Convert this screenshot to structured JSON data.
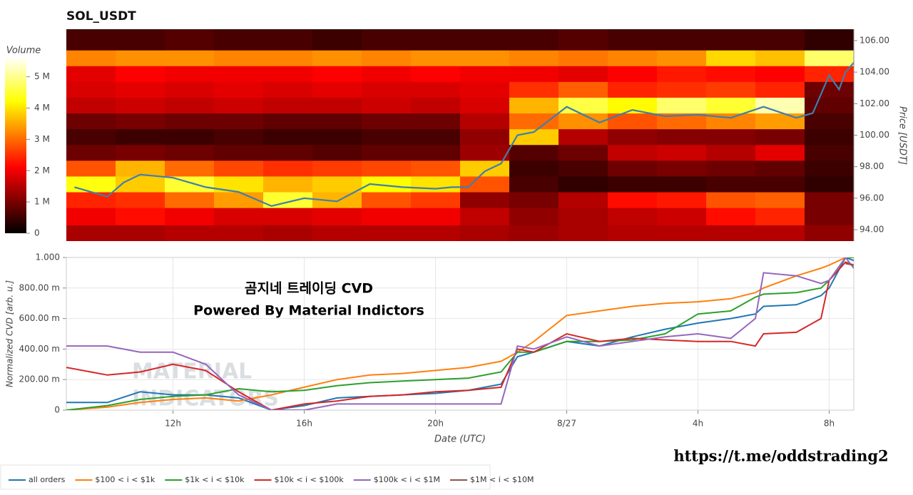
{
  "chart_data": [
    {
      "type": "heatmap",
      "title": "SOL_USDT",
      "colormap": "hot",
      "colorbar_label": "Volume",
      "ylabel": "Price [USDT]",
      "y_axis_position": "right",
      "xlim": [
        8.75,
        32.75
      ],
      "ylim": [
        93.28,
        106.72
      ],
      "yticks": [
        {
          "value": 94,
          "label": "94.00"
        },
        {
          "value": 96,
          "label": "96.00"
        },
        {
          "value": 98,
          "label": "98.00"
        },
        {
          "value": 100,
          "label": "100.00"
        },
        {
          "value": 102,
          "label": "102.00"
        },
        {
          "value": 104,
          "label": "104.00"
        },
        {
          "value": 106,
          "label": "106.00"
        }
      ],
      "zlim": [
        0,
        5630000.0
      ],
      "zticks": [
        0,
        {
          "value": 1000000.0,
          "label": "1 M"
        },
        {
          "value": 2000000.0,
          "label": "2 M"
        },
        {
          "value": 3000000.0,
          "label": "3 M"
        },
        {
          "value": 4000000.0,
          "label": "4 M"
        },
        {
          "value": 5000000.0,
          "label": "5 M"
        }
      ],
      "x_bins": [
        8.75,
        10.25,
        11.75,
        13.25,
        14.75,
        16.25,
        17.75,
        19.25,
        20.75,
        22.25,
        23.75,
        25.25,
        26.75,
        28.25,
        29.75,
        31.25,
        32.75
      ],
      "y_bins": [
        93.3,
        94.3,
        95.4,
        96.4,
        97.4,
        98.4,
        99.4,
        100.4,
        101.4,
        102.4,
        103.4,
        104.4,
        105.4,
        106.7
      ],
      "values": [
        [
          1400000.0,
          1400000.0,
          1500000.0,
          1500000.0,
          1400000.0,
          1500000.0,
          1500000.0,
          1500000.0,
          1400000.0,
          1300000.0,
          1400000.0,
          1500000.0,
          1500000.0,
          1500000.0,
          1500000.0,
          1200000.0
        ],
        [
          2000000.0,
          2200000.0,
          2000000.0,
          1800000.0,
          1800000.0,
          1900000.0,
          2000000.0,
          2000000.0,
          1600000.0,
          1200000.0,
          1400000.0,
          1600000.0,
          1700000.0,
          2200000.0,
          2400000.0,
          1000000.0
        ],
        [
          2400000.0,
          2500000.0,
          3000000.0,
          3400000.0,
          4500000.0,
          3600000.0,
          2800000.0,
          2600000.0,
          1200000.0,
          1000000.0,
          1500000.0,
          2200000.0,
          2300000.0,
          2800000.0,
          2900000.0,
          1000000.0
        ],
        [
          4300000.0,
          3800000.0,
          4500000.0,
          4000000.0,
          3600000.0,
          3800000.0,
          4200000.0,
          4000000.0,
          2800000.0,
          600000.0,
          400000.0,
          500000.0,
          500000.0,
          600000.0,
          600000.0,
          400000.0
        ],
        [
          2800000.0,
          3600000.0,
          3000000.0,
          2700000.0,
          2500000.0,
          2600000.0,
          2700000.0,
          2800000.0,
          3800000.0,
          500000.0,
          600000.0,
          900000.0,
          1000000.0,
          900000.0,
          800000.0,
          500000.0
        ],
        [
          900000.0,
          1000000.0,
          900000.0,
          800000.0,
          800000.0,
          700000.0,
          800000.0,
          800000.0,
          1300000.0,
          700000.0,
          900000.0,
          1600000.0,
          1700000.0,
          1500000.0,
          1900000.0,
          600000.0
        ],
        [
          600000.0,
          500000.0,
          500000.0,
          600000.0,
          500000.0,
          500000.0,
          600000.0,
          600000.0,
          1200000.0,
          3800000.0,
          1500000.0,
          1200000.0,
          1100000.0,
          1100000.0,
          1000000.0,
          500000.0
        ],
        [
          900000.0,
          1000000.0,
          900000.0,
          900000.0,
          800000.0,
          800000.0,
          900000.0,
          900000.0,
          1500000.0,
          3000000.0,
          3300000.0,
          2800000.0,
          3000000.0,
          3200000.0,
          3400000.0,
          600000.0
        ],
        [
          1600000.0,
          1700000.0,
          1600000.0,
          1700000.0,
          1600000.0,
          1600000.0,
          1700000.0,
          1600000.0,
          1800000.0,
          3600000.0,
          4600000.0,
          4200000.0,
          4800000.0,
          4500000.0,
          5200000.0,
          800000.0
        ],
        [
          1800000.0,
          1900000.0,
          1800000.0,
          1900000.0,
          1800000.0,
          1900000.0,
          1800000.0,
          1800000.0,
          1900000.0,
          2500000.0,
          2900000.0,
          2400000.0,
          2500000.0,
          2600000.0,
          2400000.0,
          900000.0
        ],
        [
          1900000.0,
          2100000.0,
          2000000.0,
          2000000.0,
          2000000.0,
          2100000.0,
          2000000.0,
          2100000.0,
          2000000.0,
          2000000.0,
          1900000.0,
          2100000.0,
          2300000.0,
          2200000.0,
          2100000.0,
          2400000.0
        ],
        [
          3200000.0,
          3300000.0,
          3300000.0,
          3200000.0,
          3200000.0,
          3300000.0,
          3200000.0,
          3300000.0,
          3300000.0,
          3200000.0,
          3100000.0,
          3200000.0,
          3300000.0,
          3900000.0,
          3700000.0,
          4800000.0
        ],
        [
          600000.0,
          600000.0,
          700000.0,
          600000.0,
          600000.0,
          500000.0,
          600000.0,
          600000.0,
          600000.0,
          600000.0,
          700000.0,
          600000.0,
          600000.0,
          600000.0,
          600000.0,
          400000.0
        ]
      ],
      "price": {
        "color": "#3f7fae",
        "x": [
          9,
          10,
          10.5,
          11,
          12,
          13,
          14,
          15,
          16,
          17,
          18,
          19,
          20,
          20.5,
          21,
          21.5,
          22,
          22.5,
          23,
          24,
          25,
          26,
          27,
          28,
          29,
          30,
          31,
          31.5,
          32,
          32.3,
          32.5,
          32.75
        ],
        "values": [
          96.7,
          96.1,
          97.0,
          97.5,
          97.3,
          96.7,
          96.4,
          95.5,
          96.0,
          95.8,
          96.9,
          96.7,
          96.6,
          96.7,
          96.7,
          97.7,
          98.2,
          100.0,
          100.2,
          101.8,
          100.8,
          101.6,
          101.2,
          101.3,
          101.1,
          101.8,
          101.1,
          101.4,
          103.8,
          102.9,
          104.0,
          104.6
        ]
      }
    },
    {
      "type": "line",
      "xlabel": "Date (UTC)",
      "ylabel": "Normalized CVD [arb. u.]",
      "grid": true,
      "legend": "bottom",
      "annotations": [
        "곰지네 트레이딩 CVD",
        "Powered By Material Indictors"
      ],
      "watermark": [
        "MATERIAL",
        "INDICATORS"
      ],
      "xlim": [
        8.75,
        32.75
      ],
      "xticks": [
        {
          "value": 12,
          "label": "12h"
        },
        {
          "value": 16,
          "label": "16h"
        },
        {
          "value": 20,
          "label": "20h"
        },
        {
          "value": 24,
          "label": "8/27"
        },
        {
          "value": 28,
          "label": "4h"
        },
        {
          "value": 32,
          "label": "8h"
        }
      ],
      "ylim": [
        0,
        1
      ],
      "yticks": [
        0,
        {
          "value": 0.2,
          "label": "200.00 m"
        },
        {
          "value": 0.4,
          "label": "400.00 m"
        },
        {
          "value": 0.6,
          "label": "600.00 m"
        },
        {
          "value": 0.8,
          "label": "800.00 m"
        },
        {
          "value": 1,
          "label": "1.000"
        }
      ],
      "x": [
        8.75,
        10,
        11,
        12,
        13,
        14,
        15,
        16,
        17,
        18,
        19,
        20,
        21,
        22,
        22.5,
        23,
        24,
        25,
        26,
        27,
        28,
        29,
        29.75,
        30,
        31,
        31.75,
        32,
        32.5,
        32.75
      ],
      "series": [
        {
          "name": "all orders",
          "color": "#1f77b4",
          "values": [
            0.05,
            0.05,
            0.12,
            0.1,
            0.1,
            0.08,
            0.0,
            0.03,
            0.08,
            0.09,
            0.1,
            0.11,
            0.13,
            0.17,
            0.35,
            0.38,
            0.45,
            0.42,
            0.48,
            0.53,
            0.57,
            0.6,
            0.63,
            0.68,
            0.69,
            0.75,
            0.8,
            1.0,
            0.98
          ]
        },
        {
          "name": "$100 < i < $1k",
          "color": "#ff7f0e",
          "values": [
            0.0,
            0.02,
            0.05,
            0.07,
            0.08,
            0.06,
            0.1,
            0.15,
            0.2,
            0.23,
            0.24,
            0.26,
            0.28,
            0.32,
            0.38,
            0.45,
            0.62,
            0.65,
            0.68,
            0.7,
            0.71,
            0.73,
            0.77,
            0.8,
            0.88,
            0.93,
            0.95,
            1.0,
            1.0
          ]
        },
        {
          "name": "$1k < i < $10k",
          "color": "#2ca02c",
          "values": [
            0.0,
            0.03,
            0.07,
            0.09,
            0.1,
            0.14,
            0.12,
            0.13,
            0.16,
            0.18,
            0.19,
            0.2,
            0.21,
            0.25,
            0.38,
            0.38,
            0.45,
            0.45,
            0.46,
            0.5,
            0.63,
            0.65,
            0.74,
            0.76,
            0.77,
            0.8,
            0.85,
            1.0,
            1.0
          ]
        },
        {
          "name": "$10k < i < $100k",
          "color": "#d62728",
          "values": [
            0.28,
            0.23,
            0.25,
            0.3,
            0.26,
            0.12,
            0.0,
            0.04,
            0.06,
            0.09,
            0.1,
            0.12,
            0.13,
            0.15,
            0.4,
            0.38,
            0.5,
            0.45,
            0.47,
            0.46,
            0.45,
            0.45,
            0.42,
            0.5,
            0.51,
            0.6,
            0.85,
            0.97,
            0.95
          ]
        },
        {
          "name": "$100k < i < $1M",
          "color": "#9467bd",
          "values": [
            0.42,
            0.42,
            0.38,
            0.38,
            0.3,
            0.1,
            0.0,
            0.0,
            0.04,
            0.04,
            0.04,
            0.04,
            0.04,
            0.04,
            0.42,
            0.4,
            0.48,
            0.42,
            0.45,
            0.48,
            0.5,
            0.47,
            0.6,
            0.9,
            0.88,
            0.83,
            0.85,
            1.0,
            0.93
          ]
        },
        {
          "name": "$1M < i < $10M",
          "color": "#8c564b",
          "values": [
            null,
            null,
            null,
            null,
            null,
            null,
            null,
            null,
            null,
            null,
            null,
            null,
            null,
            null,
            null,
            null,
            null,
            null,
            null,
            null,
            null,
            null,
            null,
            null,
            null,
            null,
            null,
            0.96,
            0.95
          ]
        }
      ]
    }
  ],
  "footer_link": "https://t.me/oddstrading2"
}
